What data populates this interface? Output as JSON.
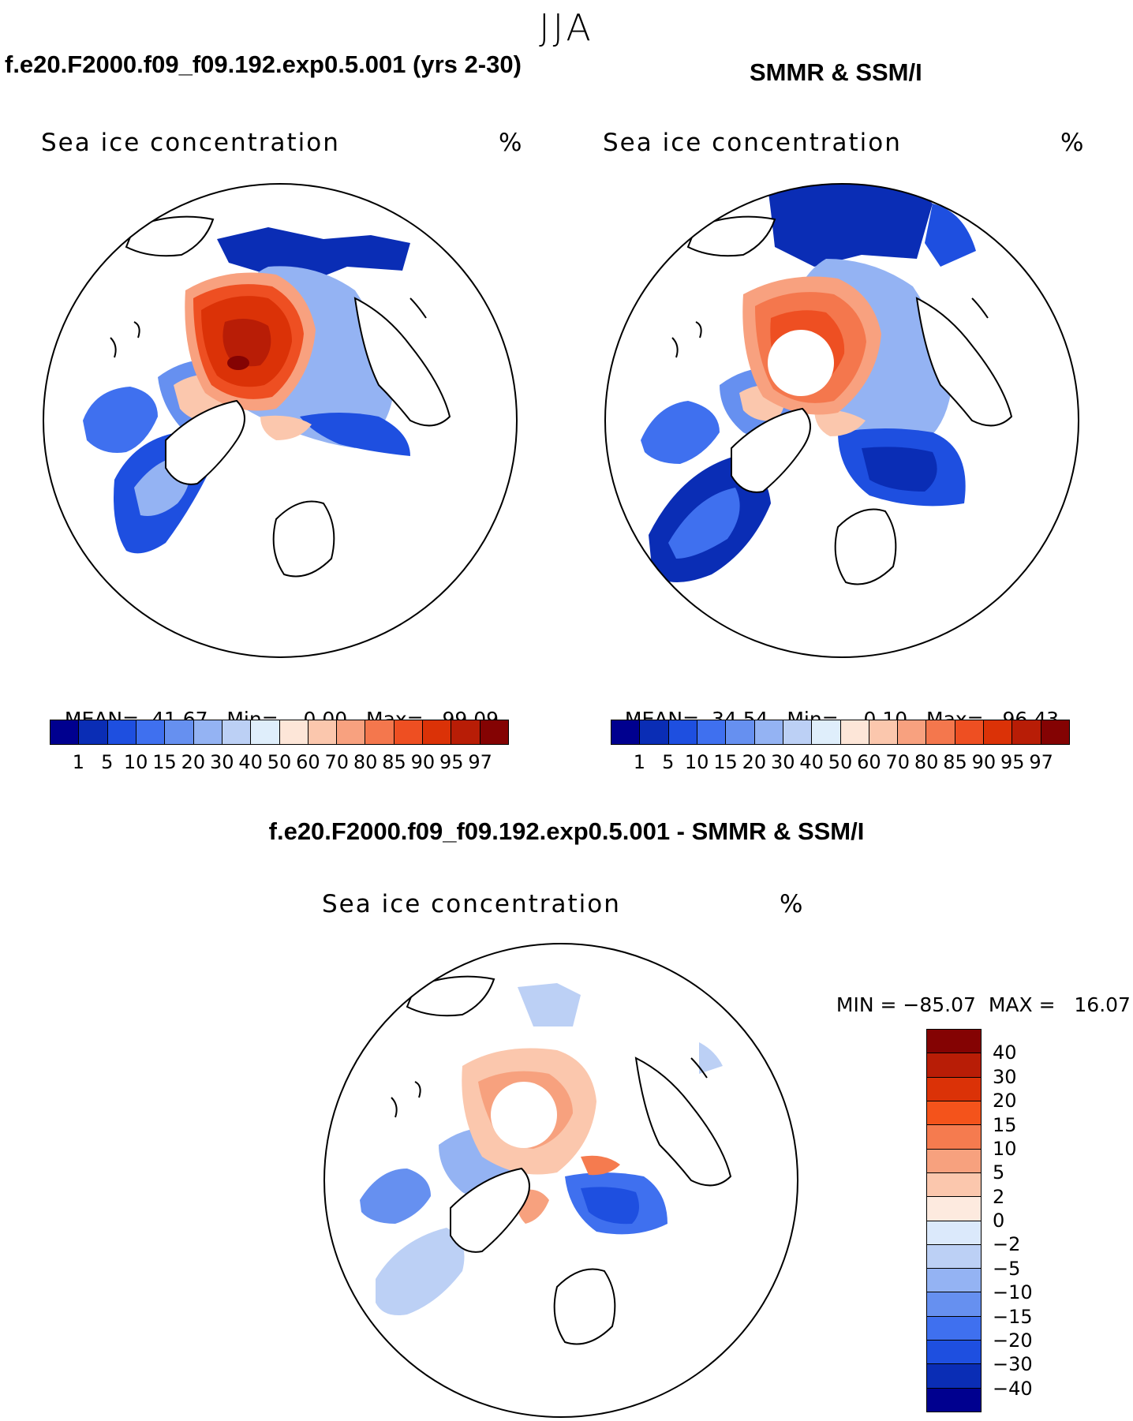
{
  "figure": {
    "season": "JJA",
    "variable": "Sea ice concentration",
    "units": "%"
  },
  "panels": {
    "model": {
      "title": "f.e20.F2000.f09_f09.192.exp0.5.001 (yrs 2-30)",
      "variable": "Sea ice concentration",
      "units": "%",
      "mean_label": "MEAN=",
      "mean": "41.67",
      "min_label": "Min=",
      "min": "0.00",
      "max_label": "Max=",
      "max": "99.09"
    },
    "obs": {
      "title": "SMMR & SSM/I",
      "variable": "Sea ice concentration",
      "units": "%",
      "mean_label": "MEAN=",
      "mean": "34.54",
      "min_label": "Min=",
      "min": "0.10",
      "max_label": "Max=",
      "max": "96.43"
    },
    "diff": {
      "title": "f.e20.F2000.f09_f09.192.exp0.5.001 - SMMR & SSM/I",
      "variable": "Sea ice concentration",
      "units": "%",
      "min_label": "MIN =",
      "min": "−85.07",
      "max_label": "MAX =",
      "max": "16.07"
    }
  },
  "colorbars": {
    "concentration": {
      "levels": [
        "1",
        "5",
        "10",
        "15",
        "20",
        "30",
        "40",
        "50",
        "60",
        "70",
        "80",
        "85",
        "90",
        "95",
        "97"
      ],
      "colors": [
        "#00008f",
        "#0a2db5",
        "#1e4fe0",
        "#3f70ef",
        "#6690f0",
        "#94b3f3",
        "#bcd0f5",
        "#dfeefb",
        "#fde6d8",
        "#fbc7ad",
        "#f8a17f",
        "#f4774d",
        "#ee4f22",
        "#db3207",
        "#b81d06",
        "#840303"
      ]
    },
    "difference": {
      "levels": [
        "40",
        "30",
        "20",
        "15",
        "10",
        "5",
        "2",
        "0",
        "−2",
        "−5",
        "−10",
        "−15",
        "−20",
        "−30",
        "−40"
      ],
      "colors": [
        "#840303",
        "#b81d06",
        "#db3207",
        "#f4531b",
        "#f57b4f",
        "#f7a17e",
        "#fbc7ad",
        "#fdeadf",
        "#dbe9fb",
        "#bcd0f5",
        "#94b3f3",
        "#6690f0",
        "#3f70ef",
        "#1e4fe0",
        "#0a2db5",
        "#00008f"
      ]
    }
  },
  "map_colors": {
    "land": "#ffffff",
    "coast": "#000000",
    "no_data": "#ffffff"
  }
}
